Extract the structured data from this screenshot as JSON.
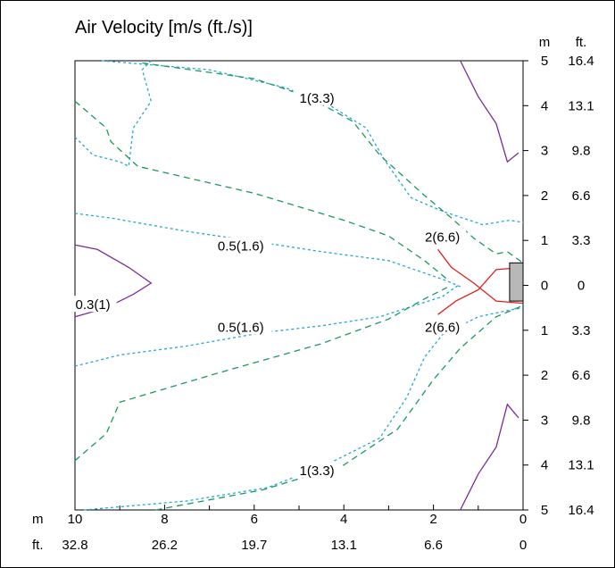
{
  "chart_data": {
    "type": "contour",
    "title": "Air Velocity [m/s (ft./s)]",
    "x_axis": {
      "unit_labels": [
        "m",
        "ft."
      ],
      "ticks": [
        {
          "m": "10",
          "ft": "32.8"
        },
        {
          "m": "8",
          "ft": "26.2"
        },
        {
          "m": "6",
          "ft": "19.7"
        },
        {
          "m": "4",
          "ft": "13.1"
        },
        {
          "m": "2",
          "ft": "6.6"
        },
        {
          "m": "0",
          "ft": "0"
        }
      ],
      "range_m": [
        10,
        0
      ]
    },
    "y_axis": {
      "unit_labels": [
        "m",
        "ft."
      ],
      "ticks": [
        {
          "m": "5",
          "ft": "16.4",
          "pos": 5
        },
        {
          "m": "4",
          "ft": "13.1",
          "pos": 4
        },
        {
          "m": "3",
          "ft": "9.8",
          "pos": 3
        },
        {
          "m": "2",
          "ft": "6.6",
          "pos": 2
        },
        {
          "m": "1",
          "ft": "3.3",
          "pos": 1
        },
        {
          "m": "0",
          "ft": "0",
          "pos": 0
        },
        {
          "m": "1",
          "ft": "3.3",
          "pos": -1
        },
        {
          "m": "2",
          "ft": "6.6",
          "pos": -2
        },
        {
          "m": "3",
          "ft": "9.8",
          "pos": -3
        },
        {
          "m": "4",
          "ft": "13.1",
          "pos": -4
        },
        {
          "m": "5",
          "ft": "16.4",
          "pos": -5
        }
      ],
      "range_m": [
        -5,
        5
      ]
    },
    "colors": {
      "v0_3": "#7b2d96",
      "v0_5": "#1fa9d6",
      "v1": "#1a9a5a",
      "v2": "#e02020",
      "outlet": "#b8b8b8"
    },
    "contour_labels": [
      {
        "text": "1(3.3)",
        "x": 4.6,
        "y": 4.15
      },
      {
        "text": "0.5(1.6)",
        "x": 6.3,
        "y": 0.85
      },
      {
        "text": "0.3(1)",
        "x": 9.6,
        "y": -0.45
      },
      {
        "text": "0.5(1.6)",
        "x": 6.3,
        "y": -0.95
      },
      {
        "text": "2(6.6)",
        "x": 1.8,
        "y": 1.05
      },
      {
        "text": "2(6.6)",
        "x": 1.8,
        "y": -0.95
      },
      {
        "text": "1(3.3)",
        "x": 4.6,
        "y": -4.15
      }
    ],
    "contours": [
      {
        "level": "0.3",
        "style": "solid",
        "points": [
          [
            1.4,
            5.0
          ],
          [
            1.0,
            4.2
          ],
          [
            0.6,
            3.6
          ],
          [
            0.35,
            2.75
          ],
          [
            0.1,
            2.95
          ]
        ]
      },
      {
        "level": "0.3",
        "style": "solid",
        "points": [
          [
            1.4,
            -5.0
          ],
          [
            1.0,
            -4.2
          ],
          [
            0.6,
            -3.6
          ],
          [
            0.35,
            -2.65
          ],
          [
            0.1,
            -2.95
          ]
        ]
      },
      {
        "level": "0.3",
        "style": "solid",
        "points": [
          [
            10,
            0.9
          ],
          [
            9.5,
            0.8
          ],
          [
            8.8,
            0.4
          ],
          [
            8.3,
            0.05
          ],
          [
            8.7,
            -0.2
          ],
          [
            9.3,
            -0.5
          ],
          [
            10,
            -0.7
          ]
        ]
      },
      {
        "level": "0.5",
        "style": "dashed",
        "points": [
          [
            10,
            1.6
          ],
          [
            9.2,
            1.5
          ],
          [
            7.5,
            1.2
          ],
          [
            5.8,
            0.95
          ],
          [
            4.5,
            0.75
          ],
          [
            3.0,
            0.55
          ],
          [
            1.7,
            0.1
          ],
          [
            1.35,
            -0.05
          ]
        ]
      },
      {
        "level": "0.5",
        "style": "dashed",
        "points": [
          [
            10,
            -1.8
          ],
          [
            9.0,
            -1.55
          ],
          [
            7.5,
            -1.35
          ],
          [
            5.8,
            -1.05
          ],
          [
            4.5,
            -0.9
          ],
          [
            3.2,
            -0.7
          ],
          [
            1.8,
            -0.25
          ],
          [
            1.45,
            0.0
          ]
        ]
      },
      {
        "level": "0.5",
        "style": "dashed",
        "points": [
          [
            9.4,
            5.0
          ],
          [
            7.0,
            4.8
          ],
          [
            5.3,
            4.4
          ],
          [
            4.3,
            4.0
          ],
          [
            3.5,
            3.5
          ],
          [
            3.1,
            2.8
          ],
          [
            2.5,
            1.95
          ],
          [
            1.8,
            1.65
          ],
          [
            0.9,
            1.35
          ],
          [
            0.3,
            1.45
          ],
          [
            0.0,
            1.4
          ]
        ]
      },
      {
        "level": "0.5",
        "style": "dashed",
        "points": [
          [
            9.8,
            -5.0
          ],
          [
            7.5,
            -4.8
          ],
          [
            5.7,
            -4.5
          ],
          [
            4.4,
            -4.0
          ],
          [
            3.2,
            -3.4
          ],
          [
            2.6,
            -2.5
          ],
          [
            2.2,
            -1.6
          ],
          [
            1.8,
            -1.1
          ],
          [
            1.0,
            -0.7
          ],
          [
            0.3,
            -0.55
          ],
          [
            0.0,
            -0.5
          ]
        ]
      },
      {
        "level": "0.5",
        "style": "dashed",
        "points": [
          [
            10,
            3.3
          ],
          [
            9.6,
            2.9
          ],
          [
            9.0,
            2.75
          ],
          [
            8.8,
            2.65
          ],
          [
            8.7,
            3.5
          ],
          [
            8.3,
            4.1
          ],
          [
            8.5,
            4.8
          ],
          [
            8.3,
            5.0
          ]
        ]
      },
      {
        "level": "1",
        "style": "dashed",
        "points": [
          [
            8.5,
            4.95
          ],
          [
            6.0,
            4.6
          ],
          [
            4.8,
            4.2
          ],
          [
            3.8,
            3.65
          ],
          [
            3.2,
            2.9
          ],
          [
            2.2,
            2.0
          ],
          [
            1.6,
            1.5
          ],
          [
            1.1,
            1.05
          ],
          [
            0.6,
            0.7
          ],
          [
            0.35,
            0.75
          ],
          [
            0.0,
            0.5
          ]
        ]
      },
      {
        "level": "1",
        "style": "dashed",
        "points": [
          [
            10,
            4.1
          ],
          [
            9.3,
            3.5
          ],
          [
            9.2,
            3.2
          ],
          [
            8.6,
            2.65
          ],
          [
            6.0,
            2.05
          ],
          [
            4.0,
            1.45
          ],
          [
            3.0,
            1.1
          ],
          [
            2.2,
            0.55
          ],
          [
            1.65,
            0.1
          ]
        ]
      },
      {
        "level": "1",
        "style": "dashed",
        "points": [
          [
            10,
            -3.9
          ],
          [
            9.3,
            -3.3
          ],
          [
            9.0,
            -2.6
          ],
          [
            6.8,
            -1.95
          ],
          [
            4.5,
            -1.3
          ],
          [
            3.0,
            -0.75
          ],
          [
            2.2,
            -0.3
          ],
          [
            1.7,
            -0.05
          ]
        ]
      },
      {
        "level": "1",
        "style": "dashed",
        "points": [
          [
            8.2,
            -5.0
          ],
          [
            5.8,
            -4.55
          ],
          [
            4.0,
            -4.0
          ],
          [
            2.8,
            -3.2
          ],
          [
            2.0,
            -2.1
          ],
          [
            1.4,
            -1.4
          ],
          [
            0.6,
            -0.7
          ],
          [
            0.0,
            -0.45
          ]
        ]
      },
      {
        "level": "2",
        "style": "solid",
        "points": [
          [
            1.9,
            0.8
          ],
          [
            1.6,
            0.4
          ],
          [
            1.1,
            0.05
          ],
          [
            0.6,
            -0.35
          ],
          [
            0.0,
            -0.4
          ]
        ]
      },
      {
        "level": "2",
        "style": "solid",
        "points": [
          [
            1.9,
            -0.65
          ],
          [
            1.5,
            -0.35
          ],
          [
            1.0,
            -0.1
          ],
          [
            0.6,
            0.35
          ],
          [
            0.0,
            0.4
          ]
        ]
      }
    ],
    "outlet": {
      "x_range": [
        0.0,
        0.3
      ],
      "y_range": [
        -0.35,
        0.5
      ]
    }
  }
}
